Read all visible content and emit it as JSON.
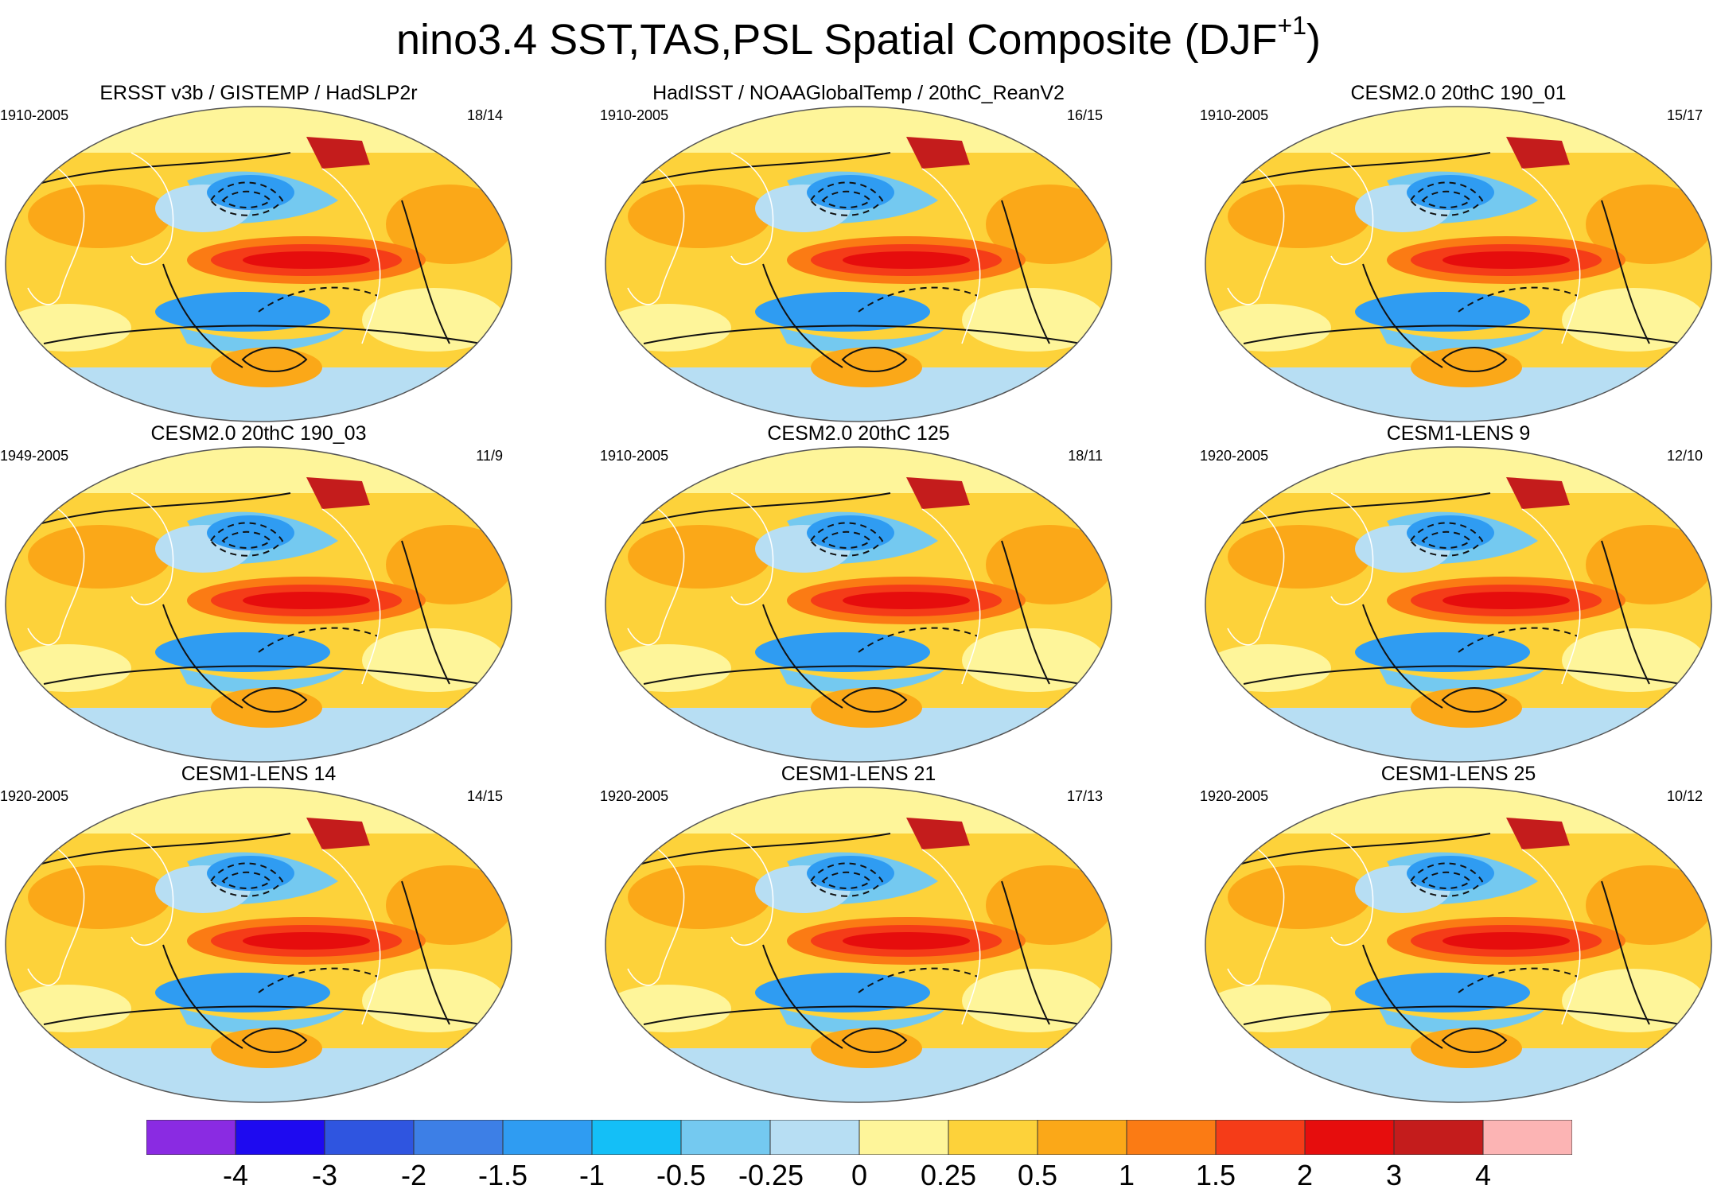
{
  "title": {
    "main": "nino3.4 SST,TAS,PSL Spatial Composite (DJF",
    "superscript": "+1",
    "close": ")"
  },
  "colors": {
    "levels": [
      "#8a2be2",
      "#1e0af0",
      "#2f55e0",
      "#3d7fe6",
      "#2f9cf2",
      "#14bff7",
      "#74c9f0",
      "#b7def3",
      "#fef59a",
      "#fdd23a",
      "#fba818",
      "#fb7b14",
      "#f53c18",
      "#e60d0d",
      "#c41c1c",
      "#fcb4b4"
    ],
    "land_outline": "#ffffff",
    "contour": "#111111"
  },
  "panels": [
    {
      "title": "ERSST v3b / GISTEMP / HadSLP2r",
      "period": "1910-2005",
      "ratio": "18/14"
    },
    {
      "title": "HadISST / NOAAGlobalTemp / 20thC_ReanV2",
      "period": "1910-2005",
      "ratio": "16/15"
    },
    {
      "title": "CESM2.0 20thC 190_01",
      "period": "1910-2005",
      "ratio": "15/17"
    },
    {
      "title": "CESM2.0 20thC 190_03",
      "period": "1949-2005",
      "ratio": "11/9"
    },
    {
      "title": "CESM2.0 20thC 125",
      "period": "1910-2005",
      "ratio": "18/11"
    },
    {
      "title": "CESM1-LENS 9",
      "period": "1920-2005",
      "ratio": "12/10"
    },
    {
      "title": "CESM1-LENS 14",
      "period": "1920-2005",
      "ratio": "14/15"
    },
    {
      "title": "CESM1-LENS 21",
      "period": "1920-2005",
      "ratio": "17/13"
    },
    {
      "title": "CESM1-LENS 25",
      "period": "1920-2005",
      "ratio": "10/12"
    }
  ],
  "colorbar": {
    "labels": [
      "-4",
      "-3",
      "-2",
      "-1.5",
      "-1",
      "-0.5",
      "-0.25",
      "0",
      "0.25",
      "0.5",
      "1",
      "1.5",
      "2",
      "3",
      "4"
    ]
  }
}
